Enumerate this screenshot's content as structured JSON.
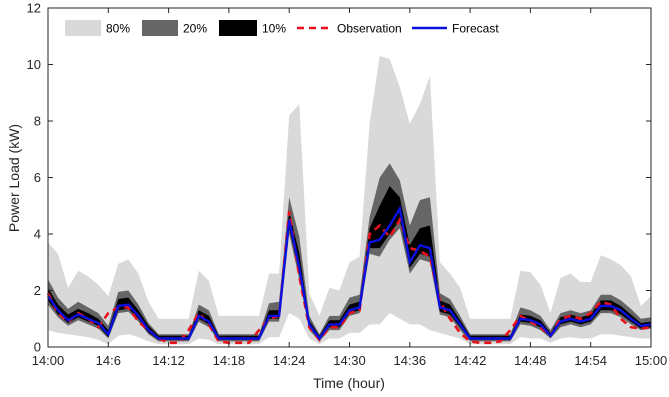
{
  "chart_data": {
    "type": "area",
    "title": "",
    "xlabel": "Time (hour)",
    "ylabel": "Power Load (kW)",
    "xlim": [
      0,
      60
    ],
    "ylim": [
      0,
      12
    ],
    "x_ticks": [
      0,
      6,
      12,
      18,
      24,
      30,
      36,
      42,
      48,
      54,
      60
    ],
    "x_tick_labels": [
      "14:00",
      "14:6",
      "14:12",
      "14:18",
      "14:24",
      "14:30",
      "14:36",
      "14:42",
      "14:48",
      "14:54",
      "15:00"
    ],
    "y_ticks": [
      0,
      2,
      4,
      6,
      8,
      10,
      12
    ],
    "y_tick_labels": [
      "0",
      "2",
      "4",
      "6",
      "8",
      "10",
      "12"
    ],
    "x": [
      0,
      1,
      2,
      3,
      4,
      5,
      6,
      7,
      8,
      9,
      10,
      11,
      12,
      13,
      14,
      15,
      16,
      17,
      18,
      19,
      20,
      21,
      22,
      23,
      24,
      25,
      26,
      27,
      28,
      29,
      30,
      31,
      32,
      33,
      34,
      35,
      36,
      37,
      38,
      39,
      40,
      41,
      42,
      43,
      44,
      45,
      46,
      47,
      48,
      49,
      50,
      51,
      52,
      53,
      54,
      55,
      56,
      57,
      58,
      59,
      60
    ],
    "forecast": [
      1.8,
      1.3,
      0.95,
      1.15,
      1.0,
      0.85,
      0.45,
      1.45,
      1.5,
      1.1,
      0.6,
      0.3,
      0.3,
      0.3,
      0.3,
      1.1,
      0.9,
      0.3,
      0.3,
      0.3,
      0.3,
      0.3,
      1.1,
      1.1,
      4.5,
      2.8,
      0.8,
      0.3,
      0.8,
      0.8,
      1.3,
      1.4,
      3.7,
      3.8,
      4.3,
      4.9,
      3.0,
      3.6,
      3.5,
      1.4,
      1.3,
      0.8,
      0.3,
      0.3,
      0.3,
      0.3,
      0.3,
      1.0,
      0.95,
      0.8,
      0.4,
      0.9,
      1.0,
      0.9,
      1.0,
      1.45,
      1.45,
      1.3,
      1.0,
      0.75,
      0.8
    ],
    "observation": [
      1.9,
      1.2,
      0.9,
      1.2,
      1.0,
      0.7,
      1.2,
      1.4,
      1.4,
      0.9,
      0.6,
      0.3,
      0.15,
      0.15,
      0.6,
      1.2,
      0.8,
      0.2,
      0.15,
      0.15,
      0.15,
      0.6,
      1.0,
      1.1,
      4.8,
      2.5,
      0.7,
      0.25,
      0.7,
      0.7,
      1.2,
      1.3,
      4.0,
      4.3,
      3.9,
      4.5,
      3.5,
      3.4,
      3.2,
      1.6,
      1.0,
      0.5,
      0.2,
      0.15,
      0.15,
      0.2,
      0.6,
      1.1,
      0.9,
      0.7,
      0.4,
      1.0,
      1.1,
      1.0,
      1.2,
      1.6,
      1.5,
      1.0,
      0.7,
      0.65,
      0.7
    ],
    "band_80": {
      "lower": [
        0.6,
        0.5,
        0.45,
        0.4,
        0.35,
        0.25,
        0.1,
        0.4,
        0.45,
        0.35,
        0.2,
        0.1,
        0.1,
        0.1,
        0.1,
        0.3,
        0.25,
        0.1,
        0.1,
        0.1,
        0.1,
        0.1,
        0.35,
        0.35,
        1.2,
        1.0,
        0.3,
        0.1,
        0.3,
        0.3,
        0.5,
        0.5,
        0.8,
        0.8,
        1.2,
        1.0,
        0.8,
        0.8,
        0.6,
        0.5,
        0.4,
        0.3,
        0.1,
        0.1,
        0.1,
        0.1,
        0.1,
        0.35,
        0.3,
        0.3,
        0.15,
        0.3,
        0.35,
        0.3,
        0.3,
        0.45,
        0.45,
        0.4,
        0.35,
        0.3,
        0.3
      ],
      "upper": [
        3.7,
        3.3,
        2.1,
        2.7,
        2.5,
        2.2,
        1.8,
        2.95,
        3.1,
        2.6,
        1.6,
        1.0,
        1.0,
        1.0,
        1.0,
        2.7,
        2.35,
        1.1,
        1.1,
        1.1,
        1.1,
        1.1,
        2.6,
        2.6,
        8.2,
        8.6,
        1.9,
        1.1,
        2.1,
        2.0,
        3.0,
        3.2,
        7.9,
        10.3,
        10.2,
        9.2,
        7.9,
        8.6,
        9.6,
        3.0,
        2.6,
        2.1,
        1.0,
        1.0,
        1.0,
        1.0,
        1.0,
        2.7,
        2.65,
        2.2,
        1.2,
        2.45,
        2.6,
        2.3,
        2.3,
        3.25,
        3.1,
        2.9,
        2.5,
        1.45,
        1.8
      ]
    },
    "band_20": {
      "lower": [
        1.5,
        1.05,
        0.75,
        0.95,
        0.8,
        0.65,
        0.3,
        1.2,
        1.25,
        0.9,
        0.45,
        0.2,
        0.2,
        0.2,
        0.2,
        0.9,
        0.7,
        0.2,
        0.2,
        0.2,
        0.2,
        0.2,
        0.9,
        0.9,
        4.0,
        2.4,
        0.6,
        0.2,
        0.6,
        0.6,
        1.1,
        1.2,
        3.3,
        3.2,
        3.8,
        4.2,
        2.6,
        3.1,
        3.0,
        1.15,
        1.05,
        0.6,
        0.2,
        0.2,
        0.2,
        0.2,
        0.2,
        0.8,
        0.75,
        0.6,
        0.3,
        0.7,
        0.8,
        0.7,
        0.8,
        1.2,
        1.2,
        1.05,
        0.8,
        0.6,
        0.65
      ],
      "upper": [
        2.4,
        1.75,
        1.35,
        1.6,
        1.4,
        1.2,
        0.75,
        1.95,
        2.0,
        1.5,
        0.85,
        0.45,
        0.45,
        0.45,
        0.45,
        1.5,
        1.3,
        0.45,
        0.45,
        0.45,
        0.45,
        0.45,
        1.55,
        1.6,
        5.3,
        3.9,
        1.1,
        0.45,
        1.1,
        1.1,
        1.75,
        1.85,
        4.6,
        6.0,
        6.5,
        5.9,
        4.3,
        5.2,
        5.3,
        1.9,
        1.7,
        1.1,
        0.45,
        0.45,
        0.45,
        0.45,
        0.45,
        1.4,
        1.3,
        1.1,
        0.6,
        1.2,
        1.3,
        1.2,
        1.3,
        1.85,
        1.85,
        1.65,
        1.35,
        1.0,
        1.05
      ]
    },
    "band_10": {
      "lower": [
        1.65,
        1.15,
        0.85,
        1.05,
        0.9,
        0.75,
        0.35,
        1.3,
        1.35,
        1.0,
        0.5,
        0.25,
        0.25,
        0.25,
        0.25,
        1.0,
        0.8,
        0.25,
        0.25,
        0.25,
        0.25,
        0.25,
        1.0,
        1.0,
        4.2,
        2.6,
        0.7,
        0.25,
        0.7,
        0.7,
        1.2,
        1.3,
        3.5,
        3.5,
        4.0,
        4.5,
        2.8,
        3.3,
        3.2,
        1.25,
        1.15,
        0.7,
        0.25,
        0.25,
        0.25,
        0.25,
        0.25,
        0.9,
        0.85,
        0.7,
        0.35,
        0.8,
        0.9,
        0.8,
        0.9,
        1.3,
        1.3,
        1.15,
        0.9,
        0.65,
        0.7
      ],
      "upper": [
        2.1,
        1.5,
        1.15,
        1.35,
        1.2,
        1.0,
        0.6,
        1.7,
        1.75,
        1.3,
        0.75,
        0.4,
        0.4,
        0.4,
        0.4,
        1.3,
        1.1,
        0.4,
        0.4,
        0.4,
        0.4,
        0.4,
        1.3,
        1.3,
        4.8,
        3.3,
        0.95,
        0.4,
        0.95,
        0.95,
        1.5,
        1.6,
        4.2,
        5.0,
        5.7,
        5.3,
        3.6,
        4.2,
        4.3,
        1.65,
        1.5,
        0.95,
        0.4,
        0.4,
        0.4,
        0.4,
        0.4,
        1.15,
        1.1,
        0.95,
        0.5,
        1.05,
        1.15,
        1.05,
        1.15,
        1.65,
        1.65,
        1.45,
        1.15,
        0.85,
        0.9
      ]
    },
    "legend": [
      {
        "label": "80%",
        "kind": "patch",
        "color": "#d9d9d9"
      },
      {
        "label": "20%",
        "kind": "patch",
        "color": "#666666"
      },
      {
        "label": "10%",
        "kind": "patch",
        "color": "#000000"
      },
      {
        "label": "Observation",
        "kind": "dashed-line",
        "color": "#e8111b"
      },
      {
        "label": "Forecast",
        "kind": "line",
        "color": "#0a10e0"
      }
    ],
    "legend_placement": "top-left",
    "grid": false,
    "colors": {
      "band_80": "#d9d9d9",
      "band_20": "#666666",
      "band_10": "#000000",
      "observation": "#e8111b",
      "forecast": "#0a10e0"
    }
  }
}
